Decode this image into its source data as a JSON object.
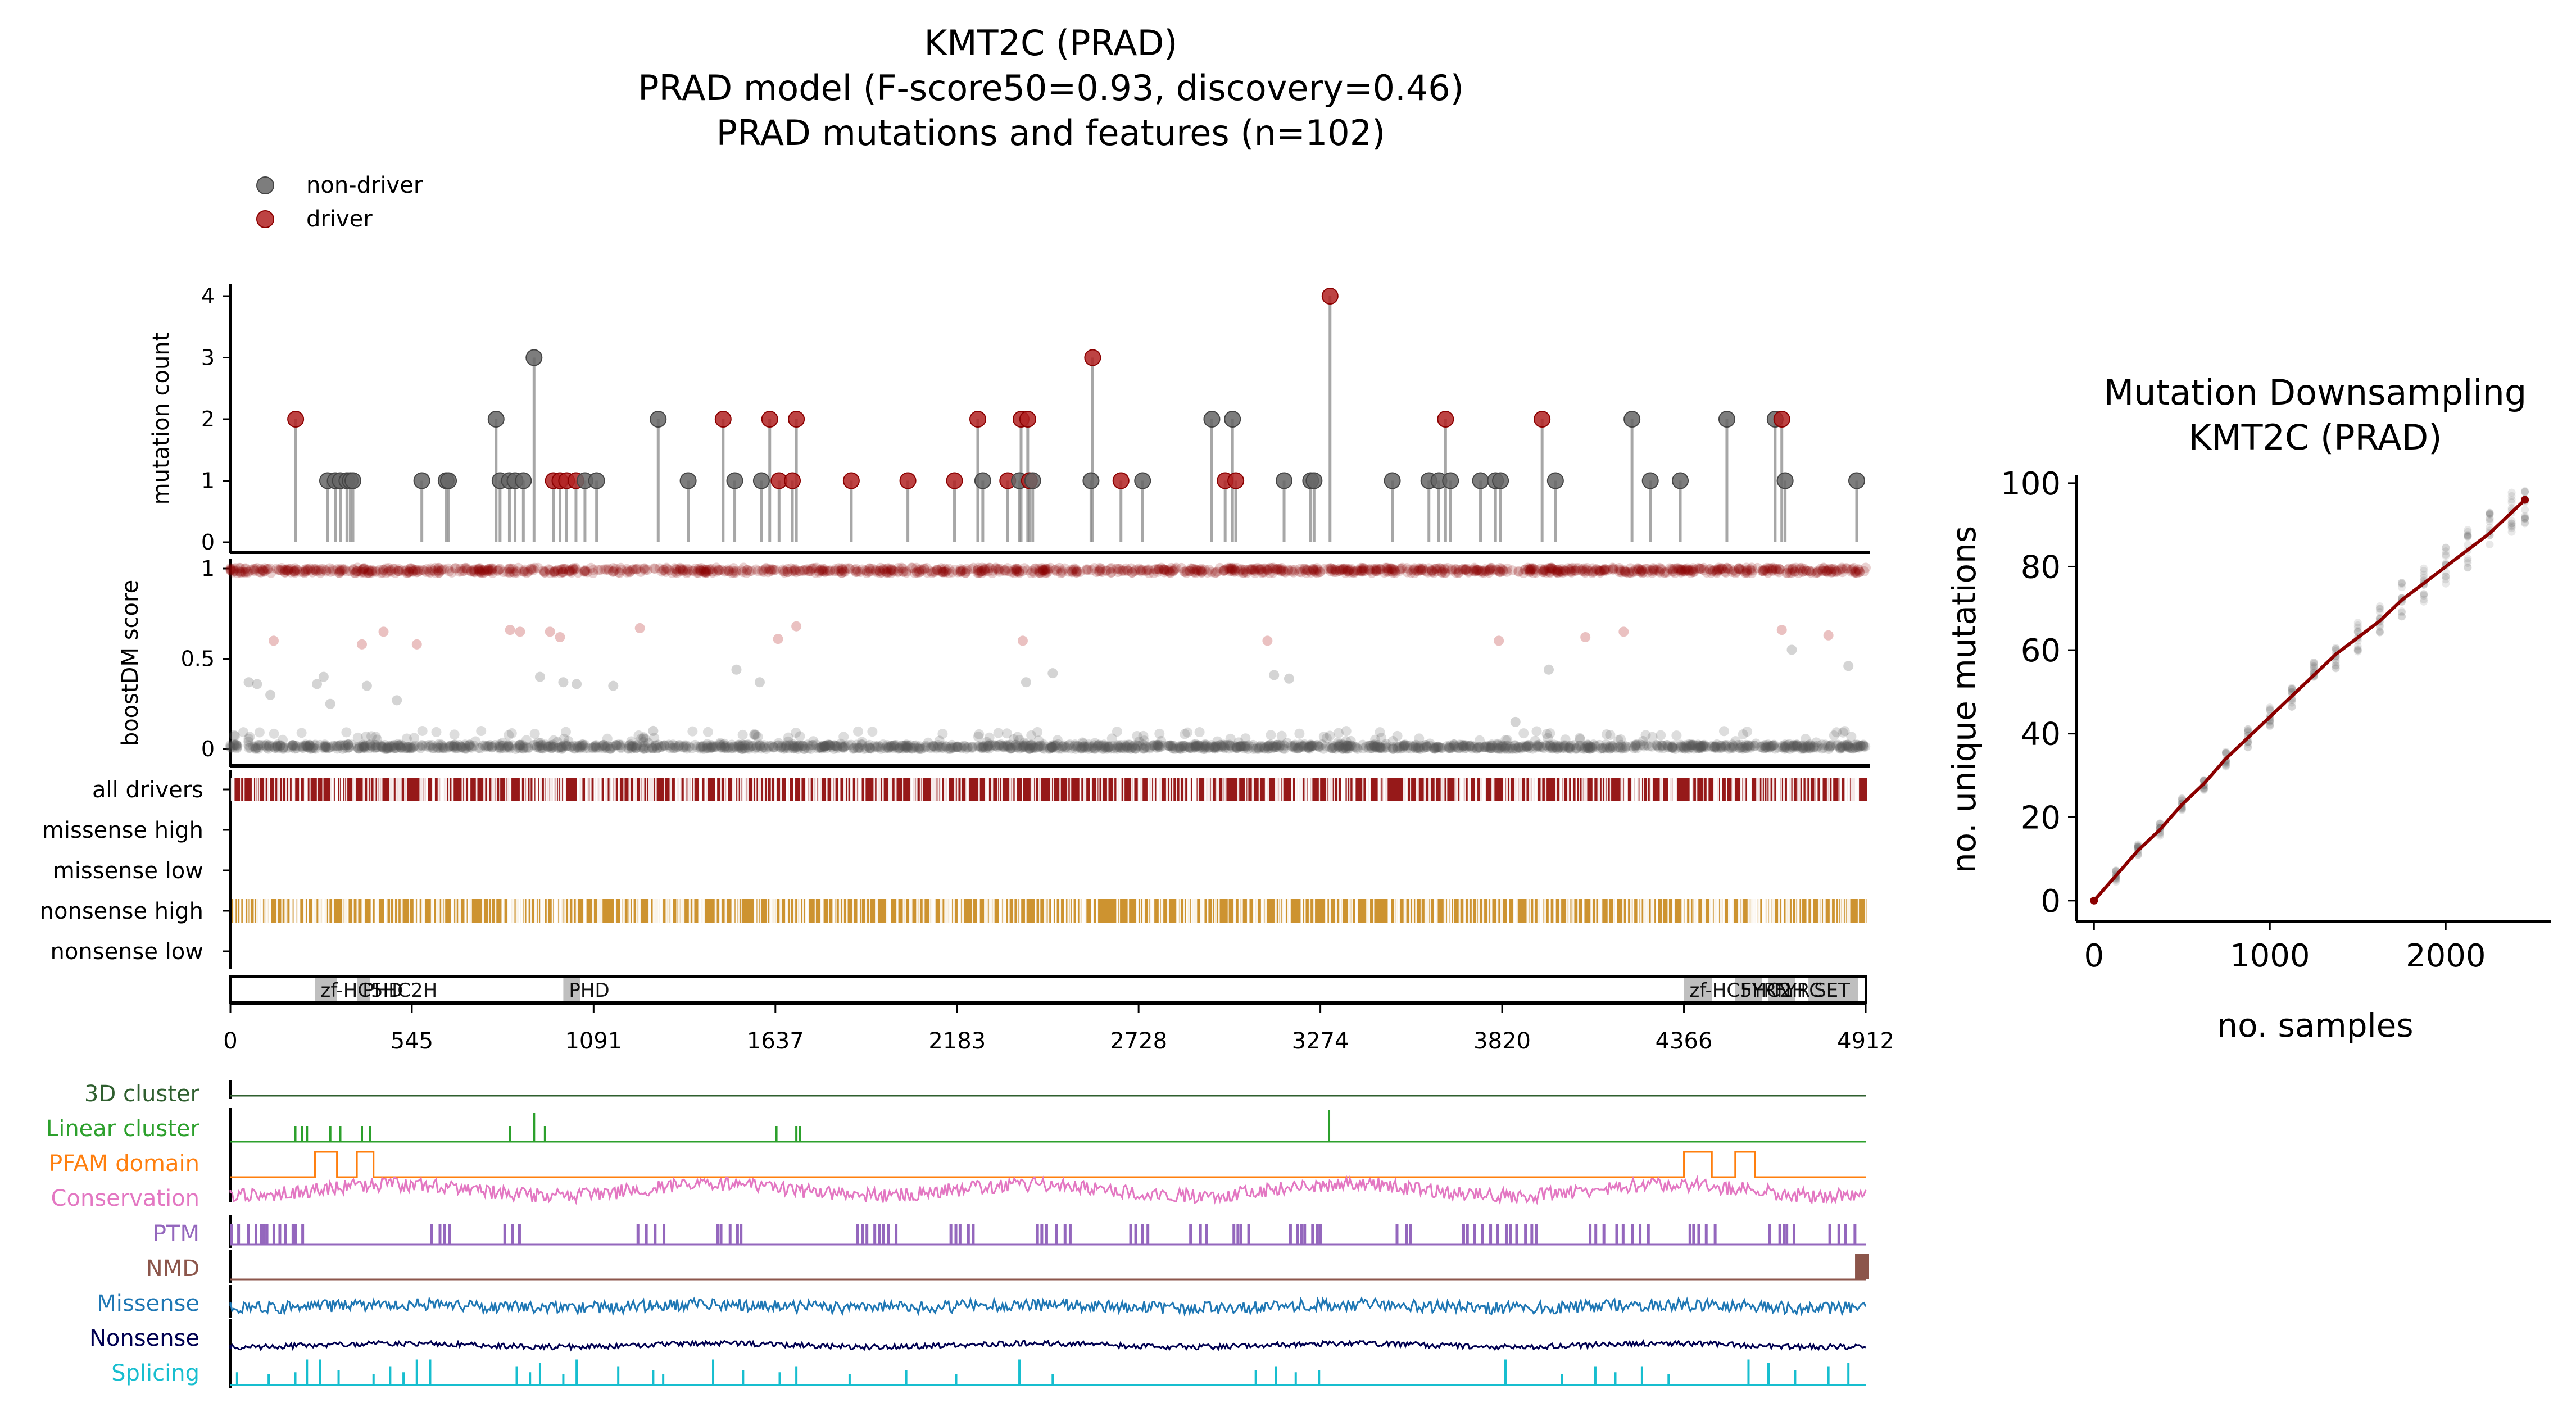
{
  "main_title": {
    "line1": "KMT2C (PRAD)",
    "line2": "PRAD model (F-score50=0.93, discovery=0.46)",
    "line3": "PRAD mutations and features (n=102)"
  },
  "legend": {
    "nondriver_label": "non-driver",
    "driver_label": "driver"
  },
  "colors": {
    "driver": "#b22222",
    "nondriver": "#666666",
    "driver_dark": "#8b0000",
    "nonsense_high": "#c8871a",
    "domain_box": "#bfbfbf",
    "feature_3d": "#2f5f2f",
    "feature_linear": "#2ca02c",
    "feature_pfam": "#ff7f0e",
    "feature_conservation": "#e377c2",
    "feature_ptm": "#9467bd",
    "feature_nmd": "#8c564b",
    "feature_missense": "#1f77b4",
    "feature_nonsense": "#000050",
    "feature_splicing": "#17becf"
  },
  "chart_data": [
    {
      "id": "lollipop",
      "type": "scatter",
      "ylabel": "mutation count",
      "xlim": [
        0,
        4912
      ],
      "ylim": [
        0,
        4
      ],
      "yticks": [
        "0",
        "1",
        "2",
        "3",
        "4"
      ],
      "points": [
        {
          "x": 196,
          "y": 2,
          "driver": true
        },
        {
          "x": 292,
          "y": 1,
          "driver": false
        },
        {
          "x": 315,
          "y": 1,
          "driver": false
        },
        {
          "x": 330,
          "y": 1,
          "driver": false
        },
        {
          "x": 350,
          "y": 1,
          "driver": false
        },
        {
          "x": 360,
          "y": 1,
          "driver": false
        },
        {
          "x": 368,
          "y": 1,
          "driver": false
        },
        {
          "x": 575,
          "y": 1,
          "driver": false
        },
        {
          "x": 648,
          "y": 1,
          "driver": false
        },
        {
          "x": 655,
          "y": 1,
          "driver": false
        },
        {
          "x": 798,
          "y": 2,
          "driver": false
        },
        {
          "x": 810,
          "y": 1,
          "driver": false
        },
        {
          "x": 838,
          "y": 1,
          "driver": false
        },
        {
          "x": 855,
          "y": 1,
          "driver": false
        },
        {
          "x": 880,
          "y": 1,
          "driver": false
        },
        {
          "x": 912,
          "y": 3,
          "driver": false
        },
        {
          "x": 970,
          "y": 1,
          "driver": true
        },
        {
          "x": 990,
          "y": 1,
          "driver": true
        },
        {
          "x": 1010,
          "y": 1,
          "driver": true
        },
        {
          "x": 1038,
          "y": 1,
          "driver": true
        },
        {
          "x": 1065,
          "y": 1,
          "driver": false
        },
        {
          "x": 1100,
          "y": 1,
          "driver": false
        },
        {
          "x": 1285,
          "y": 2,
          "driver": false
        },
        {
          "x": 1375,
          "y": 1,
          "driver": false
        },
        {
          "x": 1480,
          "y": 2,
          "driver": true
        },
        {
          "x": 1515,
          "y": 1,
          "driver": false
        },
        {
          "x": 1595,
          "y": 1,
          "driver": false
        },
        {
          "x": 1620,
          "y": 2,
          "driver": true
        },
        {
          "x": 1648,
          "y": 1,
          "driver": true
        },
        {
          "x": 1688,
          "y": 1,
          "driver": true
        },
        {
          "x": 1700,
          "y": 2,
          "driver": true
        },
        {
          "x": 1865,
          "y": 1,
          "driver": true
        },
        {
          "x": 2035,
          "y": 1,
          "driver": true
        },
        {
          "x": 2175,
          "y": 1,
          "driver": true
        },
        {
          "x": 2245,
          "y": 2,
          "driver": true
        },
        {
          "x": 2260,
          "y": 1,
          "driver": false
        },
        {
          "x": 2335,
          "y": 1,
          "driver": true
        },
        {
          "x": 2370,
          "y": 1,
          "driver": false
        },
        {
          "x": 2375,
          "y": 2,
          "driver": true
        },
        {
          "x": 2395,
          "y": 2,
          "driver": true
        },
        {
          "x": 2400,
          "y": 1,
          "driver": true
        },
        {
          "x": 2410,
          "y": 1,
          "driver": false
        },
        {
          "x": 2585,
          "y": 1,
          "driver": false
        },
        {
          "x": 2590,
          "y": 3,
          "driver": true
        },
        {
          "x": 2675,
          "y": 1,
          "driver": true
        },
        {
          "x": 2740,
          "y": 1,
          "driver": false
        },
        {
          "x": 2948,
          "y": 2,
          "driver": false
        },
        {
          "x": 2988,
          "y": 1,
          "driver": true
        },
        {
          "x": 3020,
          "y": 1,
          "driver": true
        },
        {
          "x": 3010,
          "y": 2,
          "driver": false
        },
        {
          "x": 3165,
          "y": 1,
          "driver": false
        },
        {
          "x": 3245,
          "y": 1,
          "driver": false
        },
        {
          "x": 3255,
          "y": 1,
          "driver": false
        },
        {
          "x": 3303,
          "y": 4,
          "driver": true
        },
        {
          "x": 3490,
          "y": 1,
          "driver": false
        },
        {
          "x": 3600,
          "y": 1,
          "driver": false
        },
        {
          "x": 3630,
          "y": 1,
          "driver": false
        },
        {
          "x": 3650,
          "y": 2,
          "driver": true
        },
        {
          "x": 3665,
          "y": 1,
          "driver": false
        },
        {
          "x": 3755,
          "y": 1,
          "driver": false
        },
        {
          "x": 3800,
          "y": 1,
          "driver": false
        },
        {
          "x": 3815,
          "y": 1,
          "driver": false
        },
        {
          "x": 3940,
          "y": 2,
          "driver": true
        },
        {
          "x": 3980,
          "y": 1,
          "driver": false
        },
        {
          "x": 4210,
          "y": 2,
          "driver": false
        },
        {
          "x": 4265,
          "y": 1,
          "driver": false
        },
        {
          "x": 4355,
          "y": 1,
          "driver": false
        },
        {
          "x": 4495,
          "y": 2,
          "driver": false
        },
        {
          "x": 4640,
          "y": 2,
          "driver": false
        },
        {
          "x": 4660,
          "y": 2,
          "driver": true
        },
        {
          "x": 4670,
          "y": 1,
          "driver": false
        },
        {
          "x": 4885,
          "y": 1,
          "driver": false
        }
      ]
    },
    {
      "id": "boostdm",
      "type": "scatter",
      "ylabel": "boostDM score",
      "xlim": [
        0,
        4912
      ],
      "ylim": [
        0,
        1
      ],
      "yticks": [
        "0",
        "0.5",
        "1"
      ],
      "notes_density": "dense band near 1 (drivers) and near 0 (non-drivers) across all positions",
      "sparse_points": [
        {
          "x": 55,
          "y": 0.37,
          "driver": false
        },
        {
          "x": 80,
          "y": 0.36,
          "driver": false
        },
        {
          "x": 120,
          "y": 0.3,
          "driver": false
        },
        {
          "x": 130,
          "y": 0.6,
          "driver": true
        },
        {
          "x": 260,
          "y": 0.36,
          "driver": false
        },
        {
          "x": 280,
          "y": 0.4,
          "driver": false
        },
        {
          "x": 300,
          "y": 0.25,
          "driver": false
        },
        {
          "x": 395,
          "y": 0.58,
          "driver": true
        },
        {
          "x": 410,
          "y": 0.35,
          "driver": false
        },
        {
          "x": 460,
          "y": 0.65,
          "driver": true
        },
        {
          "x": 500,
          "y": 0.27,
          "driver": false
        },
        {
          "x": 560,
          "y": 0.58,
          "driver": true
        },
        {
          "x": 840,
          "y": 0.66,
          "driver": true
        },
        {
          "x": 870,
          "y": 0.65,
          "driver": true
        },
        {
          "x": 930,
          "y": 0.4,
          "driver": false
        },
        {
          "x": 960,
          "y": 0.65,
          "driver": true
        },
        {
          "x": 990,
          "y": 0.62,
          "driver": true
        },
        {
          "x": 1000,
          "y": 0.37,
          "driver": false
        },
        {
          "x": 1040,
          "y": 0.36,
          "driver": false
        },
        {
          "x": 1150,
          "y": 0.35,
          "driver": false
        },
        {
          "x": 1230,
          "y": 0.67,
          "driver": true
        },
        {
          "x": 1270,
          "y": 0.1,
          "driver": false
        },
        {
          "x": 1520,
          "y": 0.44,
          "driver": false
        },
        {
          "x": 1590,
          "y": 0.37,
          "driver": false
        },
        {
          "x": 1645,
          "y": 0.61,
          "driver": true
        },
        {
          "x": 1700,
          "y": 0.68,
          "driver": true
        },
        {
          "x": 2380,
          "y": 0.6,
          "driver": true
        },
        {
          "x": 2390,
          "y": 0.37,
          "driver": false
        },
        {
          "x": 2470,
          "y": 0.42,
          "driver": false
        },
        {
          "x": 3115,
          "y": 0.6,
          "driver": true
        },
        {
          "x": 3135,
          "y": 0.41,
          "driver": false
        },
        {
          "x": 3180,
          "y": 0.39,
          "driver": false
        },
        {
          "x": 3810,
          "y": 0.6,
          "driver": true
        },
        {
          "x": 3860,
          "y": 0.15,
          "driver": false
        },
        {
          "x": 3960,
          "y": 0.44,
          "driver": false
        },
        {
          "x": 4070,
          "y": 0.62,
          "driver": true
        },
        {
          "x": 4185,
          "y": 0.65,
          "driver": true
        },
        {
          "x": 4660,
          "y": 0.66,
          "driver": true
        },
        {
          "x": 4690,
          "y": 0.55,
          "driver": false
        },
        {
          "x": 4800,
          "y": 0.63,
          "driver": true
        },
        {
          "x": 4860,
          "y": 0.46,
          "driver": false
        }
      ]
    },
    {
      "id": "prediction_tracks",
      "type": "heatmap",
      "xlim": [
        0,
        4912
      ],
      "tracks": [
        {
          "label": "all drivers",
          "filled": true
        },
        {
          "label": "missense high",
          "filled": false
        },
        {
          "label": "missense low",
          "filled": false
        },
        {
          "label": "nonsense high",
          "filled": true
        },
        {
          "label": "nonsense low",
          "filled": false
        }
      ]
    },
    {
      "id": "domains",
      "type": "bar",
      "xlim": [
        0,
        4912
      ],
      "xticks": [
        "0",
        "545",
        "1091",
        "1637",
        "2183",
        "2728",
        "3274",
        "3820",
        "4366",
        "4912"
      ],
      "domains": [
        {
          "label": "zf-HC5HC2H",
          "start": 254,
          "end": 320
        },
        {
          "label": "PHD",
          "start": 380,
          "end": 420
        },
        {
          "label": "PHD",
          "start": 1000,
          "end": 1050
        },
        {
          "label": "zf-HC5HC2H",
          "start": 4366,
          "end": 4450
        },
        {
          "label": "FYRN",
          "start": 4520,
          "end": 4600
        },
        {
          "label": "FYRC",
          "start": 4620,
          "end": 4700
        },
        {
          "label": "SET",
          "start": 4740,
          "end": 4890
        }
      ]
    },
    {
      "id": "features",
      "type": "line",
      "xlim": [
        0,
        4912
      ],
      "tracks": [
        {
          "label": "3D cluster",
          "kind": "flat"
        },
        {
          "label": "Linear cluster",
          "kind": "spikes"
        },
        {
          "label": "PFAM domain",
          "kind": "steps"
        },
        {
          "label": "Conservation",
          "kind": "noise"
        },
        {
          "label": "PTM",
          "kind": "bars"
        },
        {
          "label": "NMD",
          "kind": "end-block"
        },
        {
          "label": "Missense",
          "kind": "noise"
        },
        {
          "label": "Nonsense",
          "kind": "lownoise"
        },
        {
          "label": "Splicing",
          "kind": "spikes"
        }
      ]
    },
    {
      "id": "downsampling",
      "type": "line",
      "title_line1": "Mutation Downsampling",
      "title_line2": "KMT2C (PRAD)",
      "xlabel": "no. samples",
      "ylabel": "no. unique mutations",
      "xlim": [
        -100,
        2600
      ],
      "ylim": [
        -5,
        102
      ],
      "xticks": [
        "0",
        "1000",
        "2000"
      ],
      "yticks": [
        "0",
        "20",
        "40",
        "60",
        "80",
        "100"
      ],
      "x": [
        0,
        125,
        250,
        375,
        500,
        625,
        750,
        875,
        1000,
        1125,
        1250,
        1375,
        1500,
        1625,
        1750,
        1875,
        2000,
        2125,
        2250,
        2375,
        2450
      ],
      "y": [
        0,
        6,
        12,
        17,
        23,
        28,
        34,
        39,
        44,
        49,
        54,
        59,
        63,
        67,
        72,
        76,
        80,
        84,
        88,
        93,
        96
      ]
    }
  ]
}
